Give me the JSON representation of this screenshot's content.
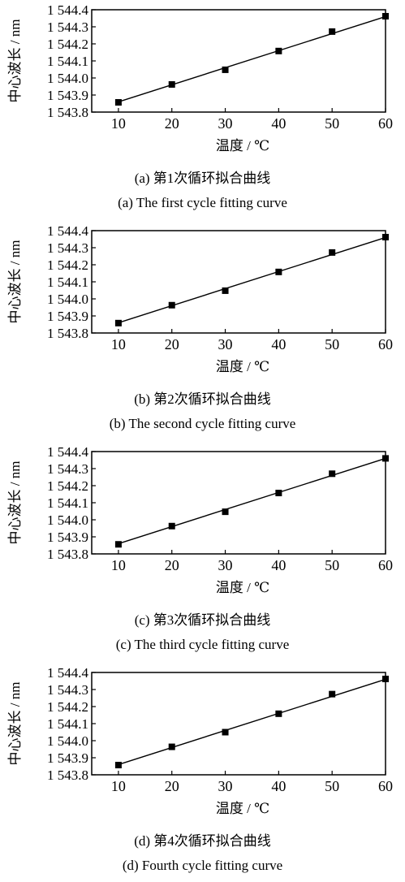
{
  "chart_data": [
    {
      "type": "line",
      "caption_cn": "(a)  第1次循环拟合曲线",
      "caption_en": "(a)  The first cycle fitting curve",
      "xlabel": "温度 / ℃",
      "ylabel": "中心波长 / nm",
      "xticks": [
        "10",
        "20",
        "30",
        "40",
        "50",
        "60"
      ],
      "yticks": [
        "1 543.8",
        "1 543.9",
        "1 544.0",
        "1 544.1",
        "1 544.2",
        "1 544.3",
        "1 544.4"
      ],
      "xlim": [
        5,
        60
      ],
      "ylim": [
        1543.8,
        1544.4
      ],
      "markers": {
        "x": [
          10,
          20,
          30,
          40,
          50,
          60
        ],
        "y": [
          1543.857,
          1543.962,
          1544.048,
          1544.158,
          1544.272,
          1544.362
        ]
      },
      "fit": {
        "x": [
          10,
          60
        ],
        "y": [
          1543.86,
          1544.36
        ]
      }
    },
    {
      "type": "line",
      "caption_cn": "(b)  第2次循环拟合曲线",
      "caption_en": "(b)  The second cycle fitting curve",
      "xlabel": "温度 / ℃",
      "ylabel": "中心波长 / nm",
      "xticks": [
        "10",
        "20",
        "30",
        "40",
        "50",
        "60"
      ],
      "yticks": [
        "1 543.8",
        "1 543.9",
        "1 544.0",
        "1 544.1",
        "1 544.2",
        "1 544.3",
        "1 544.4"
      ],
      "xlim": [
        5,
        60
      ],
      "ylim": [
        1543.8,
        1544.4
      ],
      "markers": {
        "x": [
          10,
          20,
          30,
          40,
          50,
          60
        ],
        "y": [
          1543.858,
          1543.963,
          1544.048,
          1544.158,
          1544.272,
          1544.362
        ]
      },
      "fit": {
        "x": [
          10,
          60
        ],
        "y": [
          1543.86,
          1544.36
        ]
      }
    },
    {
      "type": "line",
      "caption_cn": "(c)  第3次循环拟合曲线",
      "caption_en": "(c)  The third cycle fitting curve",
      "xlabel": "温度 / ℃",
      "ylabel": "中心波长 / nm",
      "xticks": [
        "10",
        "20",
        "30",
        "40",
        "50",
        "60"
      ],
      "yticks": [
        "1 543.8",
        "1 543.9",
        "1 544.0",
        "1 544.1",
        "1 544.2",
        "1 544.3",
        "1 544.4"
      ],
      "xlim": [
        5,
        60
      ],
      "ylim": [
        1543.8,
        1544.4
      ],
      "markers": {
        "x": [
          10,
          20,
          30,
          40,
          50,
          60
        ],
        "y": [
          1543.856,
          1543.963,
          1544.047,
          1544.157,
          1544.27,
          1544.36
        ]
      },
      "fit": {
        "x": [
          10,
          60
        ],
        "y": [
          1543.86,
          1544.36
        ]
      }
    },
    {
      "type": "line",
      "caption_cn": "(d)  第4次循环拟合曲线",
      "caption_en": "(d)  Fourth cycle fitting curve",
      "xlabel": "温度 / ℃",
      "ylabel": "中心波长 / nm",
      "xticks": [
        "10",
        "20",
        "30",
        "40",
        "50",
        "60"
      ],
      "yticks": [
        "1 543.8",
        "1 543.9",
        "1 544.0",
        "1 544.1",
        "1 544.2",
        "1 544.3",
        "1 544.4"
      ],
      "xlim": [
        5,
        60
      ],
      "ylim": [
        1543.8,
        1544.4
      ],
      "markers": {
        "x": [
          10,
          20,
          30,
          40,
          50,
          60
        ],
        "y": [
          1543.857,
          1543.964,
          1544.05,
          1544.158,
          1544.273,
          1544.362
        ]
      },
      "fit": {
        "x": [
          10,
          60
        ],
        "y": [
          1543.86,
          1544.36
        ]
      }
    }
  ]
}
